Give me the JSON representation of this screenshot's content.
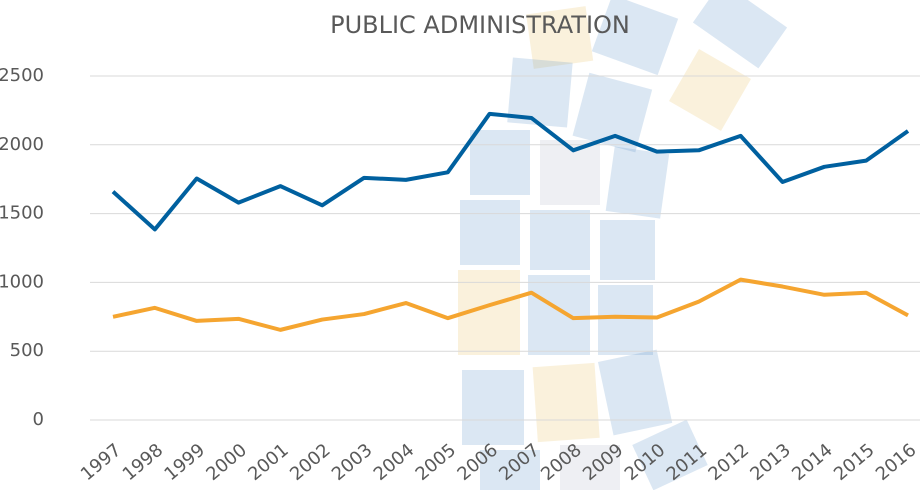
{
  "chart_data": {
    "type": "line",
    "title": "PUBLIC ADMINISTRATION",
    "categories": [
      "1997",
      "1998",
      "1999",
      "2000",
      "2001",
      "2002",
      "2003",
      "2004",
      "2005",
      "2006",
      "2007",
      "2008",
      "2009",
      "2010",
      "2011",
      "2012",
      "2013",
      "2014",
      "2015",
      "2016"
    ],
    "series": [
      {
        "color": "#00609f",
        "values": [
          1660,
          1385,
          1755,
          1580,
          1700,
          1560,
          1760,
          1745,
          1800,
          2225,
          2195,
          1960,
          2065,
          1950,
          1960,
          2065,
          1730,
          1840,
          1885,
          2100
        ]
      },
      {
        "color": "#f5a530",
        "values": [
          750,
          815,
          720,
          735,
          655,
          730,
          770,
          850,
          740,
          835,
          925,
          740,
          750,
          745,
          860,
          1020,
          970,
          910,
          925,
          760
        ]
      }
    ],
    "ylim": [
      0,
      2500
    ],
    "yticks": [
      0,
      500,
      1000,
      1500,
      2000,
      2500
    ],
    "grid": true
  }
}
